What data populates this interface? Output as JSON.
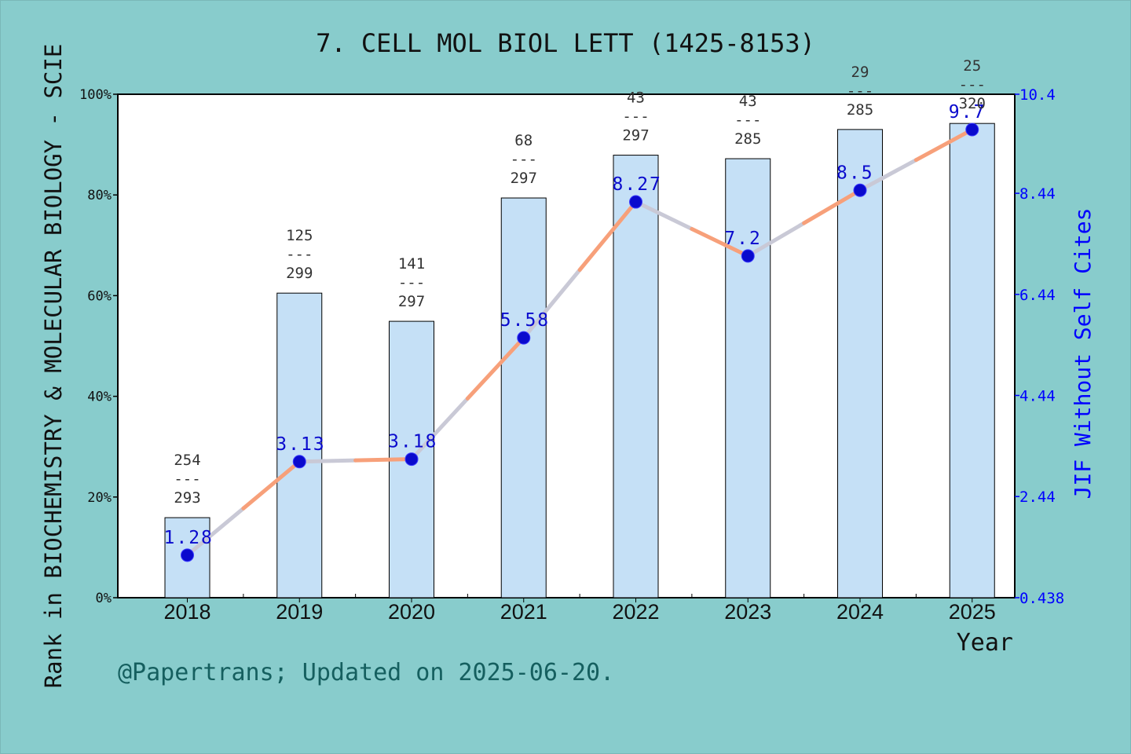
{
  "chart_data": {
    "type": "bar",
    "title": "7. CELL MOL BIOL LETT (1425-8153)",
    "xlabel": "Year",
    "ylabel": "Rank in BIOCHEMISTRY & MOLECULAR BIOLOGY - SCIE",
    "y2label": "JIF Without Self Cites",
    "categories": [
      "2018",
      "2019",
      "2020",
      "2021",
      "2022",
      "2023",
      "2024",
      "2025"
    ],
    "ylim": [
      0,
      100
    ],
    "y_ticks": [
      "0%",
      "20%",
      "40%",
      "60%",
      "80%",
      "100%"
    ],
    "y2lim": [
      0.438,
      10.4
    ],
    "y2_ticks": [
      "0.438",
      "2.44",
      "4.44",
      "6.44",
      "8.44",
      "10.4"
    ],
    "series": [
      {
        "kind": "bar",
        "values": [
          15.9,
          60.5,
          54.9,
          79.4,
          87.9,
          87.2,
          93.0,
          94.2
        ],
        "rank_top": [
          "254",
          "125",
          "141",
          "68",
          "43",
          "43",
          "29",
          "25"
        ],
        "rank_bottom": [
          "293",
          "299",
          "297",
          "297",
          "297",
          "285",
          "285",
          "320"
        ],
        "fraction_line": "---"
      },
      {
        "kind": "line",
        "axis": "right",
        "values": [
          1.28,
          3.13,
          3.18,
          5.58,
          8.27,
          7.2,
          8.5,
          9.7
        ],
        "labels": [
          "1.28",
          "3.13",
          "3.18",
          "5.58",
          "8.27",
          "7.2",
          "8.5",
          "9.7"
        ]
      }
    ],
    "grid": false,
    "colors": {
      "background": "#88cccc",
      "plot_area": "#ffffff",
      "bar_fill": "#c5e0f6",
      "line": "#f7a07a",
      "line_alt": "#c9c9d6",
      "marker": "#0a0acd",
      "right_axis": "#0000ff",
      "footer": "#155f5f"
    }
  },
  "footer": "@Papertrans; Updated on 2025-06-20."
}
